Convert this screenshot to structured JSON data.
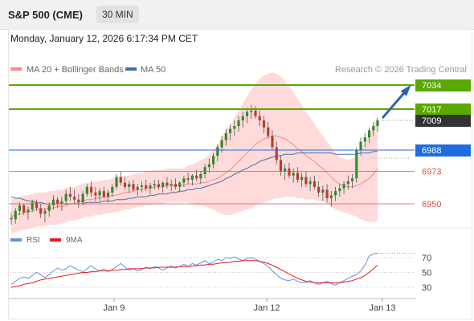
{
  "header": {
    "title": "S&P 500 (CME)",
    "interval": "30 MIN"
  },
  "timestamp": "Monday, January 12, 2026 6:17:34 PM CET",
  "legend": {
    "ma20_bb": "MA 20 + Bollinger Bands",
    "ma50": "MA 50",
    "credit": "Research © 2026 Trading Central",
    "rsi": "RSI",
    "ma9": "9MA"
  },
  "colors": {
    "up": "#2e8b2e",
    "down": "#c0392b",
    "bollinger_fill": "#ffcdcd",
    "ma20": "#f28b8b",
    "ma50": "#4a6fa5",
    "target": "#5aa800",
    "pivot": "#1e6ce0",
    "support": "#d9534f",
    "last": "#333333",
    "arrow": "#2d64b0",
    "rsi": "#6a8fdb",
    "ma9": "#e31b1b"
  },
  "chart_data": [
    {
      "type": "candlestick",
      "x_ticks": [
        "Jan 9",
        "Jan 12",
        "Jan 13"
      ],
      "series_legend": [
        "MA 20 + Bollinger Bands",
        "MA 50"
      ],
      "levels": [
        {
          "value": 7034,
          "label": "7034",
          "kind": "target"
        },
        {
          "value": 7017,
          "label": "7017",
          "kind": "target"
        },
        {
          "value": 7009,
          "label": "7009",
          "kind": "last"
        },
        {
          "value": 6988,
          "label": "6988",
          "kind": "pivot"
        },
        {
          "value": 6973,
          "label": "6973",
          "kind": "support"
        },
        {
          "value": 6950,
          "label": "6950",
          "kind": "support"
        }
      ],
      "ohlc": [
        [
          6940,
          6944,
          6935,
          6939
        ],
        [
          6939,
          6947,
          6936,
          6945
        ],
        [
          6945,
          6951,
          6942,
          6949
        ],
        [
          6949,
          6950,
          6942,
          6944
        ],
        [
          6944,
          6948,
          6939,
          6946
        ],
        [
          6946,
          6953,
          6944,
          6951
        ],
        [
          6951,
          6953,
          6945,
          6947
        ],
        [
          6947,
          6950,
          6940,
          6943
        ],
        [
          6943,
          6947,
          6937,
          6945
        ],
        [
          6945,
          6951,
          6941,
          6949
        ],
        [
          6949,
          6956,
          6946,
          6953
        ],
        [
          6953,
          6955,
          6947,
          6950
        ],
        [
          6950,
          6955,
          6945,
          6952
        ],
        [
          6952,
          6960,
          6949,
          6957
        ],
        [
          6957,
          6962,
          6952,
          6955
        ],
        [
          6955,
          6960,
          6950,
          6953
        ],
        [
          6953,
          6957,
          6947,
          6951
        ],
        [
          6951,
          6959,
          6949,
          6957
        ],
        [
          6957,
          6964,
          6955,
          6962
        ],
        [
          6962,
          6966,
          6955,
          6958
        ],
        [
          6958,
          6962,
          6952,
          6956
        ],
        [
          6956,
          6961,
          6952,
          6959
        ],
        [
          6959,
          6962,
          6954,
          6955
        ],
        [
          6955,
          6960,
          6951,
          6958
        ],
        [
          6958,
          6964,
          6955,
          6962
        ],
        [
          6962,
          6971,
          6960,
          6969
        ],
        [
          6969,
          6973,
          6963,
          6965
        ],
        [
          6965,
          6969,
          6960,
          6962
        ],
        [
          6962,
          6966,
          6958,
          6964
        ],
        [
          6964,
          6967,
          6959,
          6960
        ],
        [
          6960,
          6964,
          6956,
          6962
        ],
        [
          6962,
          6966,
          6958,
          6963
        ],
        [
          6963,
          6967,
          6959,
          6961
        ],
        [
          6961,
          6965,
          6957,
          6963
        ],
        [
          6963,
          6967,
          6960,
          6964
        ],
        [
          6964,
          6967,
          6960,
          6962
        ],
        [
          6962,
          6966,
          6958,
          6965
        ],
        [
          6965,
          6969,
          6961,
          6963
        ],
        [
          6963,
          6967,
          6959,
          6964
        ],
        [
          6964,
          6968,
          6960,
          6962
        ],
        [
          6962,
          6966,
          6958,
          6965
        ],
        [
          6965,
          6970,
          6962,
          6968
        ],
        [
          6968,
          6972,
          6964,
          6967
        ],
        [
          6967,
          6971,
          6963,
          6970
        ],
        [
          6970,
          6974,
          6966,
          6968
        ],
        [
          6968,
          6973,
          6964,
          6971
        ],
        [
          6971,
          6978,
          6968,
          6976
        ],
        [
          6976,
          6982,
          6972,
          6978
        ],
        [
          6978,
          6986,
          6975,
          6984
        ],
        [
          6984,
          6992,
          6980,
          6990
        ],
        [
          6990,
          6998,
          6986,
          6995
        ],
        [
          6995,
          7003,
          6991,
          7000
        ],
        [
          7000,
          7006,
          6995,
          7003
        ],
        [
          7003,
          7009,
          6998,
          7005
        ],
        [
          7005,
          7012,
          7001,
          7009
        ],
        [
          7009,
          7015,
          7004,
          7012
        ],
        [
          7012,
          7018,
          7007,
          7015
        ],
        [
          7015,
          7020,
          7010,
          7016
        ],
        [
          7016,
          7019,
          7010,
          7012
        ],
        [
          7012,
          7016,
          7005,
          7009
        ],
        [
          7009,
          7012,
          7000,
          7004
        ],
        [
          7004,
          7008,
          6996,
          6998
        ],
        [
          6998,
          7002,
          6988,
          6990
        ],
        [
          6990,
          6994,
          6978,
          6981
        ],
        [
          6981,
          6984,
          6970,
          6973
        ],
        [
          6973,
          6978,
          6967,
          6975
        ],
        [
          6975,
          6979,
          6968,
          6970
        ],
        [
          6970,
          6975,
          6965,
          6972
        ],
        [
          6972,
          6976,
          6965,
          6967
        ],
        [
          6967,
          6972,
          6962,
          6969
        ],
        [
          6969,
          6973,
          6962,
          6964
        ],
        [
          6964,
          6969,
          6959,
          6966
        ],
        [
          6966,
          6970,
          6960,
          6962
        ],
        [
          6962,
          6966,
          6955,
          6958
        ],
        [
          6958,
          6963,
          6952,
          6960
        ],
        [
          6960,
          6964,
          6951,
          6954
        ],
        [
          6954,
          6959,
          6948,
          6956
        ],
        [
          6956,
          6962,
          6952,
          6959
        ],
        [
          6959,
          6964,
          6955,
          6961
        ],
        [
          6961,
          6966,
          6957,
          6964
        ],
        [
          6964,
          6970,
          6960,
          6966
        ],
        [
          6966,
          6971,
          6961,
          6968
        ],
        [
          6968,
          6990,
          6965,
          6988
        ],
        [
          6988,
          6997,
          6984,
          6994
        ],
        [
          6994,
          7000,
          6990,
          6997
        ],
        [
          6997,
          7004,
          6993,
          7002
        ],
        [
          7002,
          7008,
          6998,
          7005
        ],
        [
          7005,
          7011,
          7001,
          7009
        ]
      ],
      "ma20": [
        6941,
        6942,
        6943,
        6944,
        6944,
        6945,
        6946,
        6946,
        6946,
        6947,
        6947,
        6948,
        6948,
        6949,
        6950,
        6950,
        6951,
        6952,
        6953,
        6953,
        6954,
        6954,
        6955,
        6955,
        6956,
        6956,
        6957,
        6958,
        6958,
        6959,
        6960,
        6960,
        6961,
        6961,
        6962,
        6962,
        6962,
        6963,
        6963,
        6963,
        6963,
        6963,
        6964,
        6964,
        6964,
        6965,
        6965,
        6966,
        6967,
        6968,
        6970,
        6972,
        6974,
        6977,
        6980,
        6983,
        6986,
        6989,
        6992,
        6994,
        6996,
        6997,
        6998,
        6998,
        6997,
        6996,
        6994,
        6992,
        6989,
        6987,
        6984,
        6982,
        6980,
        6977,
        6975,
        6972,
        6969,
        6966,
        6964,
        6963,
        6962,
        6962,
        6963,
        6964,
        6966,
        6968,
        6971,
        6975
      ],
      "ma50": [
        6955,
        6954,
        6954,
        6953,
        6952,
        6952,
        6951,
        6951,
        6950,
        6950,
        6950,
        6950,
        6950,
        6950,
        6950,
        6950,
        6950,
        6950,
        6951,
        6951,
        6951,
        6951,
        6952,
        6952,
        6952,
        6953,
        6953,
        6953,
        6954,
        6954,
        6955,
        6955,
        6955,
        6956,
        6956,
        6957,
        6957,
        6957,
        6958,
        6958,
        6959,
        6959,
        6960,
        6960,
        6961,
        6961,
        6962,
        6963,
        6964,
        6965,
        6966,
        6968,
        6969,
        6971,
        6972,
        6974,
        6975,
        6977,
        6978,
        6980,
        6981,
        6982,
        6983,
        6984,
        6984,
        6985,
        6985,
        6985,
        6986,
        6986,
        6986,
        6986,
        6986,
        6986,
        6986,
        6986,
        6986,
        6985,
        6985,
        6985,
        6985,
        6985,
        6985,
        6986,
        6986,
        6986,
        6987,
        6987
      ],
      "bb_width": [
        12,
        12,
        12,
        12,
        12,
        12,
        12,
        12,
        12,
        12,
        12,
        12,
        12,
        12,
        12,
        12,
        12,
        12,
        12,
        12,
        12,
        12,
        12,
        12,
        12,
        12,
        12,
        12,
        12,
        12,
        12,
        12,
        12,
        12,
        12,
        12,
        12,
        12,
        12,
        12,
        12,
        12,
        13,
        14,
        15,
        16,
        17,
        19,
        21,
        24,
        27,
        30,
        32,
        34,
        36,
        38,
        40,
        42,
        43,
        44,
        45,
        45,
        45,
        44,
        43,
        41,
        39,
        37,
        35,
        33,
        31,
        29,
        27,
        25,
        23,
        22,
        21,
        20,
        19,
        19,
        19,
        20,
        22,
        25,
        28,
        31,
        34,
        37
      ]
    },
    {
      "type": "line",
      "name": "RSI",
      "ylim": [
        20,
        80
      ],
      "y_ticks": [
        70,
        50,
        30
      ],
      "series": [
        {
          "name": "RSI",
          "values": [
            34,
            38,
            42,
            44,
            42,
            46,
            50,
            47,
            43,
            47,
            52,
            56,
            53,
            55,
            59,
            56,
            53,
            51,
            55,
            59,
            55,
            52,
            55,
            51,
            54,
            58,
            62,
            57,
            53,
            55,
            52,
            54,
            57,
            55,
            58,
            56,
            53,
            56,
            59,
            56,
            58,
            61,
            58,
            62,
            60,
            63,
            66,
            62,
            64,
            68,
            66,
            70,
            69,
            71,
            68,
            66,
            69,
            70,
            68,
            65,
            62,
            58,
            52,
            47,
            42,
            40,
            39,
            41,
            38,
            36,
            37,
            39,
            36,
            34,
            36,
            38,
            35,
            33,
            36,
            39,
            42,
            45,
            47,
            52,
            60,
            72,
            75,
            76
          ]
        },
        {
          "name": "9MA",
          "values": [
            30,
            31,
            32,
            34,
            35,
            36,
            38,
            40,
            41,
            42,
            43,
            44,
            45,
            46,
            47,
            48,
            49,
            50,
            50,
            51,
            51,
            52,
            52,
            52,
            53,
            53,
            54,
            54,
            55,
            55,
            55,
            55,
            56,
            56,
            56,
            57,
            57,
            57,
            57,
            57,
            58,
            58,
            58,
            59,
            59,
            60,
            60,
            61,
            61,
            62,
            63,
            63,
            64,
            65,
            65,
            66,
            66,
            66,
            66,
            65,
            64,
            62,
            60,
            57,
            54,
            51,
            48,
            45,
            42,
            40,
            38,
            37,
            36,
            36,
            36,
            36,
            36,
            36,
            36,
            37,
            38,
            39,
            41,
            43,
            46,
            50,
            55,
            60
          ]
        }
      ]
    }
  ]
}
